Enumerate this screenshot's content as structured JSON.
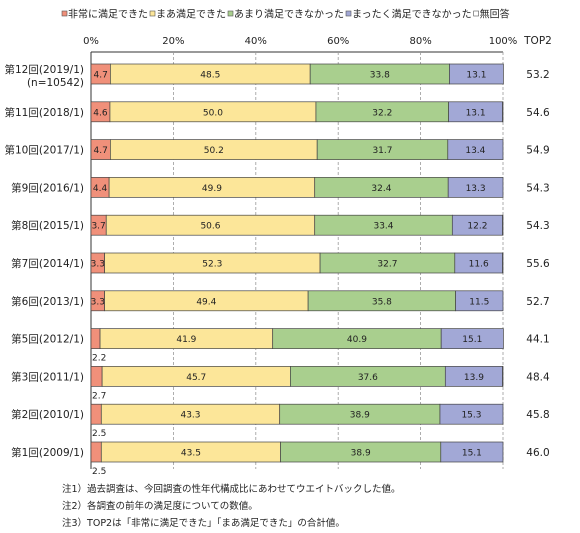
{
  "chart_data": {
    "type": "bar",
    "orientation": "horizontal",
    "stacked": true,
    "legend_placement": "top",
    "xlim": [
      0,
      100
    ],
    "x_ticks": [
      "0%",
      "20%",
      "40%",
      "60%",
      "80%",
      "100%"
    ],
    "top2_header": "TOP2",
    "categories": [
      [
        "第12回(2019/1)",
        "(n=10542)"
      ],
      [
        "第11回(2018/1)"
      ],
      [
        "第10回(2017/1)"
      ],
      [
        "第9回(2016/1)"
      ],
      [
        "第8回(2015/1)"
      ],
      [
        "第7回(2014/1)"
      ],
      [
        "第6回(2013/1)"
      ],
      [
        "第5回(2012/1)"
      ],
      [
        "第3回(2011/1)"
      ],
      [
        "第2回(2010/1)"
      ],
      [
        "第1回(2009/1)"
      ]
    ],
    "series": [
      {
        "name": "非常に満足できた",
        "color": "#f0907a",
        "values": [
          4.7,
          4.6,
          4.7,
          4.4,
          3.7,
          3.3,
          3.3,
          2.2,
          2.7,
          2.5,
          2.5
        ]
      },
      {
        "name": "まあ満足できた",
        "color": "#fce699",
        "values": [
          48.5,
          50.0,
          50.2,
          49.9,
          50.6,
          52.3,
          49.4,
          41.9,
          45.7,
          43.3,
          43.5
        ]
      },
      {
        "name": "あまり満足できなかった",
        "color": "#a9cf8e",
        "values": [
          33.8,
          32.2,
          31.7,
          32.4,
          33.4,
          32.7,
          35.8,
          40.9,
          37.6,
          38.9,
          38.9
        ]
      },
      {
        "name": "まったく満足できなかった",
        "color": "#a2a8d6",
        "values": [
          13.1,
          13.1,
          13.4,
          13.3,
          12.2,
          11.6,
          11.5,
          15.1,
          13.9,
          15.3,
          15.1
        ]
      },
      {
        "name": "無回答",
        "color": "#ffffff",
        "values": [
          null,
          null,
          null,
          null,
          null,
          null,
          null,
          null,
          null,
          null,
          null
        ]
      }
    ],
    "top2": [
      53.2,
      54.6,
      54.9,
      54.3,
      54.3,
      55.6,
      52.7,
      44.1,
      48.4,
      45.8,
      46.0
    ],
    "value_labels": [
      [
        "4.7",
        "48.5",
        "33.8",
        "13.1"
      ],
      [
        "4.6",
        "50.0",
        "32.2",
        "13.1"
      ],
      [
        "4.7",
        "50.2",
        "31.7",
        "13.4"
      ],
      [
        "4.4",
        "49.9",
        "32.4",
        "13.3"
      ],
      [
        "3.7",
        "50.6",
        "33.4",
        "12.2"
      ],
      [
        "3.3",
        "52.3",
        "32.7",
        "11.6"
      ],
      [
        "3.3",
        "49.4",
        "35.8",
        "11.5"
      ],
      [
        "2.2",
        "41.9",
        "40.9",
        "15.1"
      ],
      [
        "2.7",
        "45.7",
        "37.6",
        "13.9"
      ],
      [
        "2.5",
        "43.3",
        "38.9",
        "15.3"
      ],
      [
        "2.5",
        "43.5",
        "38.9",
        "15.1"
      ]
    ],
    "top2_labels": [
      "53.2",
      "54.6",
      "54.9",
      "54.3",
      "54.3",
      "55.6",
      "52.7",
      "44.1",
      "48.4",
      "45.8",
      "46.0"
    ]
  },
  "notes": [
    "注1）過去調査は、今回調査の性年代構成比にあわせてウエイトバックした値。",
    "注2）各調査の前年の満足度についての数値。",
    "注3）TOP2は「非常に満足できた」「まあ満足できた」の合計値。"
  ]
}
